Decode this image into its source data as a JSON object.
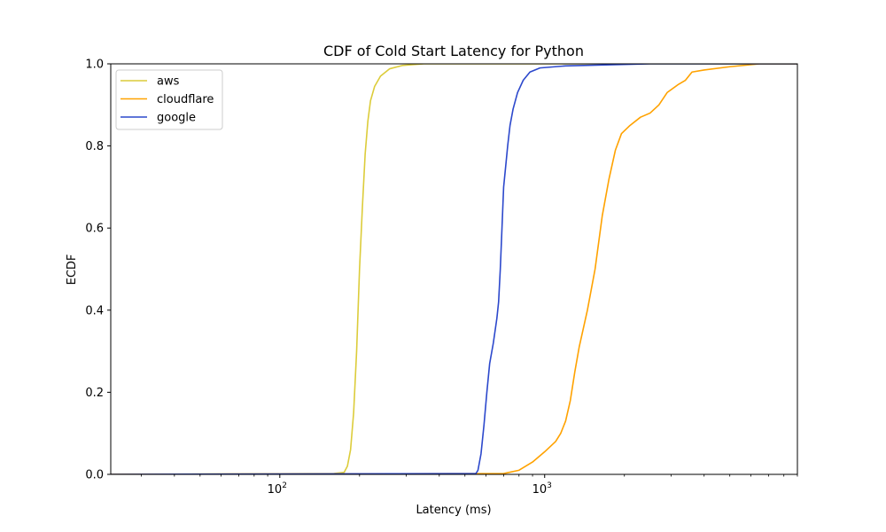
{
  "chart_data": {
    "type": "line",
    "title": "CDF of Cold Start Latency for Python",
    "xlabel": "Latency (ms)",
    "ylabel": "ECDF",
    "xscale": "log",
    "xlim": [
      23,
      9000
    ],
    "ylim": [
      0,
      1
    ],
    "grid": false,
    "legend_position": "top-left",
    "x_ticks": [
      {
        "value": 100,
        "label": "10",
        "exp": "2"
      },
      {
        "value": 1000,
        "label": "10",
        "exp": "3"
      }
    ],
    "y_ticks": [
      "0.0",
      "0.2",
      "0.4",
      "0.6",
      "0.8",
      "1.0"
    ],
    "series": [
      {
        "name": "aws",
        "color": "#dccc3a",
        "points": [
          [
            23,
            0
          ],
          [
            160,
            0.002
          ],
          [
            175,
            0.005
          ],
          [
            180,
            0.02
          ],
          [
            185,
            0.06
          ],
          [
            190,
            0.15
          ],
          [
            195,
            0.3
          ],
          [
            200,
            0.5
          ],
          [
            205,
            0.65
          ],
          [
            210,
            0.78
          ],
          [
            215,
            0.86
          ],
          [
            220,
            0.91
          ],
          [
            228,
            0.945
          ],
          [
            240,
            0.97
          ],
          [
            260,
            0.988
          ],
          [
            290,
            0.996
          ],
          [
            350,
            1.0
          ],
          [
            9000,
            1.0
          ]
        ]
      },
      {
        "name": "cloudflare",
        "color": "#ffa200",
        "points": [
          [
            23,
            0
          ],
          [
            700,
            0.002
          ],
          [
            800,
            0.01
          ],
          [
            900,
            0.03
          ],
          [
            1000,
            0.055
          ],
          [
            1100,
            0.08
          ],
          [
            1150,
            0.1
          ],
          [
            1200,
            0.13
          ],
          [
            1250,
            0.18
          ],
          [
            1300,
            0.25
          ],
          [
            1350,
            0.31
          ],
          [
            1450,
            0.4
          ],
          [
            1550,
            0.5
          ],
          [
            1650,
            0.63
          ],
          [
            1750,
            0.72
          ],
          [
            1850,
            0.79
          ],
          [
            1950,
            0.83
          ],
          [
            2100,
            0.85
          ],
          [
            2300,
            0.87
          ],
          [
            2500,
            0.88
          ],
          [
            2700,
            0.9
          ],
          [
            2900,
            0.93
          ],
          [
            3200,
            0.95
          ],
          [
            3400,
            0.96
          ],
          [
            3600,
            0.98
          ],
          [
            4000,
            0.985
          ],
          [
            5000,
            0.993
          ],
          [
            6500,
            1.0
          ],
          [
            9000,
            1.0
          ]
        ]
      },
      {
        "name": "google",
        "color": "#2c48cc",
        "points": [
          [
            23,
            0
          ],
          [
            550,
            0.002
          ],
          [
            560,
            0.01
          ],
          [
            575,
            0.05
          ],
          [
            590,
            0.12
          ],
          [
            605,
            0.2
          ],
          [
            620,
            0.27
          ],
          [
            640,
            0.32
          ],
          [
            660,
            0.38
          ],
          [
            670,
            0.42
          ],
          [
            680,
            0.5
          ],
          [
            690,
            0.6
          ],
          [
            700,
            0.7
          ],
          [
            715,
            0.76
          ],
          [
            725,
            0.8
          ],
          [
            740,
            0.85
          ],
          [
            760,
            0.89
          ],
          [
            790,
            0.93
          ],
          [
            830,
            0.96
          ],
          [
            880,
            0.98
          ],
          [
            960,
            0.99
          ],
          [
            1200,
            0.995
          ],
          [
            2500,
            1.0
          ],
          [
            9000,
            1.0
          ]
        ]
      }
    ]
  }
}
